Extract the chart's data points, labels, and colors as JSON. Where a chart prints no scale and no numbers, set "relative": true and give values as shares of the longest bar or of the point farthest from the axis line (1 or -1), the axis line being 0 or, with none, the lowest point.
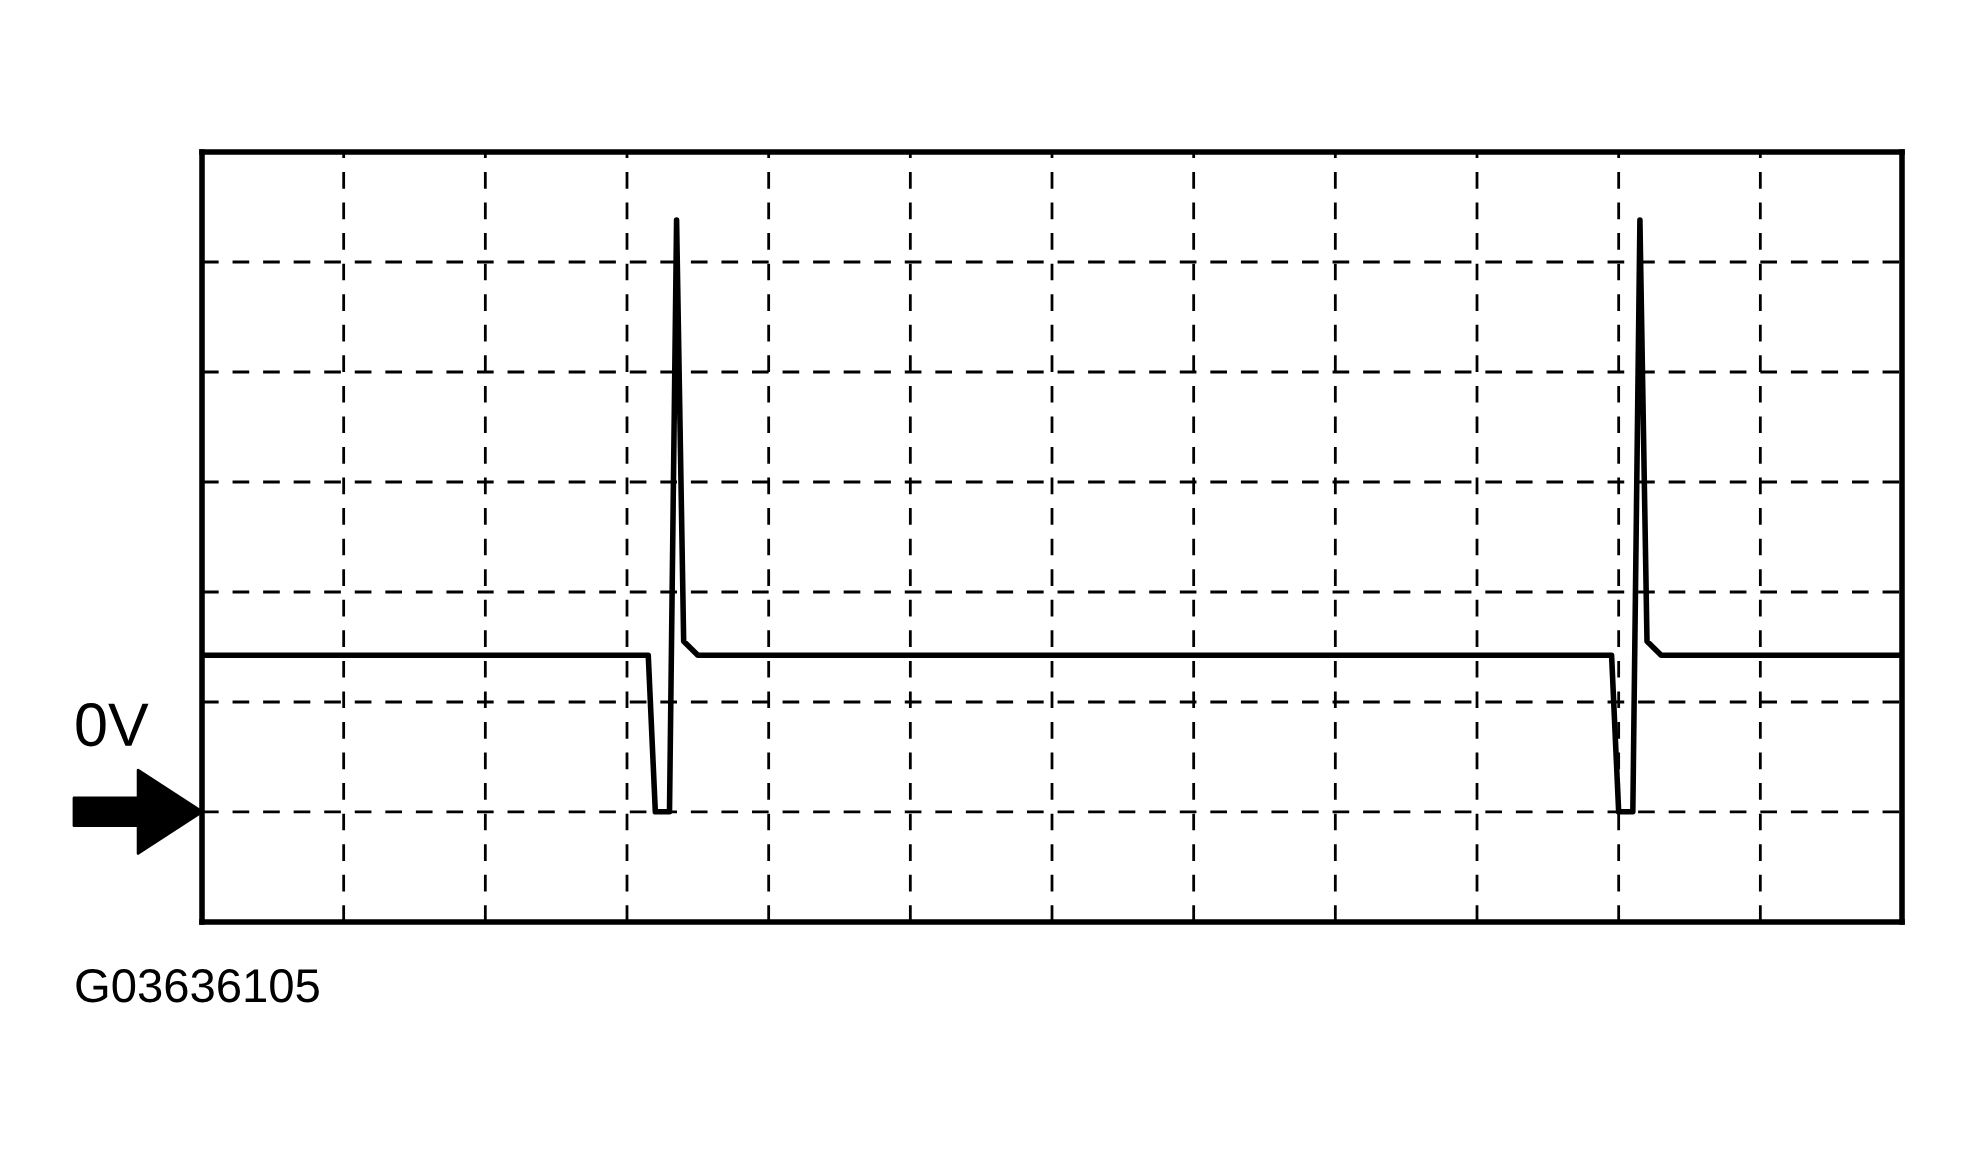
{
  "chart_data": {
    "type": "line",
    "relative": true,
    "color": "#000000",
    "grid": true,
    "categories": [
      null,
      null,
      null,
      null,
      null,
      null,
      null,
      null,
      null,
      null,
      null,
      null,
      null,
      null,
      null,
      null,
      null,
      null,
      null,
      null,
      null,
      null,
      null,
      null,
      null,
      null,
      null,
      null,
      null,
      null,
      null,
      null,
      null,
      null,
      null,
      null,
      null,
      null,
      null,
      null,
      null,
      null,
      null,
      null,
      null,
      null,
      null,
      null,
      null,
      null,
      null,
      null,
      null,
      null,
      null,
      null,
      null,
      null,
      null,
      null,
      null,
      null,
      null,
      null,
      null,
      null,
      null,
      null,
      null,
      null,
      null,
      null,
      null,
      null,
      null,
      null,
      null,
      null,
      null,
      null,
      null,
      null,
      null,
      null,
      null,
      null,
      null,
      null,
      null,
      null,
      null,
      null,
      null,
      null,
      null,
      null,
      null,
      null,
      null,
      null,
      null,
      null,
      null,
      null,
      null,
      null,
      null,
      null,
      null,
      null,
      null,
      null,
      null,
      null,
      null,
      null,
      null,
      null,
      null,
      null,
      null,
      null,
      null,
      null,
      null,
      null,
      null,
      null,
      null,
      null,
      null,
      null,
      null,
      null,
      null,
      null,
      null,
      null,
      null,
      null,
      null,
      null,
      null,
      null,
      null,
      null,
      null,
      null,
      null,
      null,
      null,
      null,
      null,
      null,
      null,
      null,
      null,
      null,
      null,
      null,
      null,
      null,
      null,
      null,
      null,
      null,
      null,
      null,
      null,
      null,
      null,
      null,
      null,
      null,
      null,
      null,
      null,
      null,
      null,
      null,
      null,
      null,
      null,
      null,
      null,
      null,
      null,
      null,
      null,
      null,
      null,
      null,
      null,
      null,
      null,
      null,
      null,
      null,
      null,
      null,
      null,
      null,
      null,
      null,
      null,
      null,
      null,
      null,
      null,
      null,
      null,
      null,
      null,
      null,
      null,
      null,
      null,
      null,
      null,
      null,
      null,
      null,
      null,
      null,
      null,
      null,
      null,
      null,
      null,
      null,
      null,
      null,
      null,
      null,
      null,
      null,
      null,
      null,
      null,
      null,
      null
    ],
    "values": [
      0.38,
      0.38,
      0.38,
      0.38,
      0.38,
      0.38,
      0.38,
      0.38,
      0.38,
      0.38,
      0.38,
      0.38,
      0.38,
      0.38,
      0.38,
      0.38,
      0.38,
      0.38,
      0.38,
      0.38,
      0.38,
      0.38,
      0.38,
      0.38,
      0.38,
      0.38,
      0.38,
      0.38,
      0.38,
      0.38,
      0.38,
      0.38,
      0.38,
      0.38,
      0.38,
      0.38,
      0.38,
      0.38,
      0.38,
      0.38,
      0.38,
      0.38,
      0.38,
      0.38,
      0.38,
      0.38,
      0.38,
      0.38,
      0.38,
      0.38,
      0.38,
      0.38,
      0.38,
      0.38,
      0.38,
      0.38,
      0.38,
      0.38,
      0.38,
      0.38,
      0.38,
      0.38,
      0.38,
      0.38,
      0.157,
      0.157,
      0.157,
      1,
      0.4,
      0.39,
      0.38,
      0.38,
      0.38,
      0.38,
      0.38,
      0.38,
      0.38,
      0.38,
      0.38,
      0.38,
      0.38,
      0.38,
      0.38,
      0.38,
      0.38,
      0.38,
      0.38,
      0.38,
      0.38,
      0.38,
      0.38,
      0.38,
      0.38,
      0.38,
      0.38,
      0.38,
      0.38,
      0.38,
      0.38,
      0.38,
      0.38,
      0.38,
      0.38,
      0.38,
      0.38,
      0.38,
      0.38,
      0.38,
      0.38,
      0.38,
      0.38,
      0.38,
      0.38,
      0.38,
      0.38,
      0.38,
      0.38,
      0.38,
      0.38,
      0.38,
      0.38,
      0.38,
      0.38,
      0.38,
      0.38,
      0.38,
      0.38,
      0.38,
      0.38,
      0.38,
      0.38,
      0.38,
      0.38,
      0.38,
      0.38,
      0.38,
      0.38,
      0.38,
      0.38,
      0.38,
      0.38,
      0.38,
      0.38,
      0.38,
      0.38,
      0.38,
      0.38,
      0.38,
      0.38,
      0.38,
      0.38,
      0.38,
      0.38,
      0.38,
      0.38,
      0.38,
      0.38,
      0.38,
      0.38,
      0.38,
      0.38,
      0.38,
      0.38,
      0.38,
      0.38,
      0.38,
      0.38,
      0.38,
      0.38,
      0.38,
      0.38,
      0.38,
      0.38,
      0.38,
      0.38,
      0.38,
      0.38,
      0.38,
      0.38,
      0.38,
      0.38,
      0.38,
      0.38,
      0.38,
      0.38,
      0.38,
      0.38,
      0.38,
      0.38,
      0.38,
      0.38,
      0.38,
      0.38,
      0.38,
      0.38,
      0.38,
      0.38,
      0.38,
      0.38,
      0.38,
      0.157,
      0.157,
      0.157,
      1,
      0.4,
      0.39,
      0.38,
      0.38,
      0.38,
      0.38,
      0.38,
      0.38,
      0.38,
      0.38,
      0.38,
      0.38,
      0.38,
      0.38,
      0.38,
      0.38,
      0.38,
      0.38,
      0.38,
      0.38,
      0.38,
      0.38,
      0.38,
      0.38,
      0.38,
      0.38,
      0.38,
      0.38,
      0.38,
      0.38,
      0.38,
      0.38,
      0.38,
      0.38,
      0.38,
      0.38,
      0.38
    ],
    "ref_lines": [
      {
        "axis": "y",
        "value": 0.157,
        "label": "0V",
        "line_style": "dashed",
        "color": "#000000"
      }
    ],
    "annotations": [
      "G03636105"
    ]
  }
}
